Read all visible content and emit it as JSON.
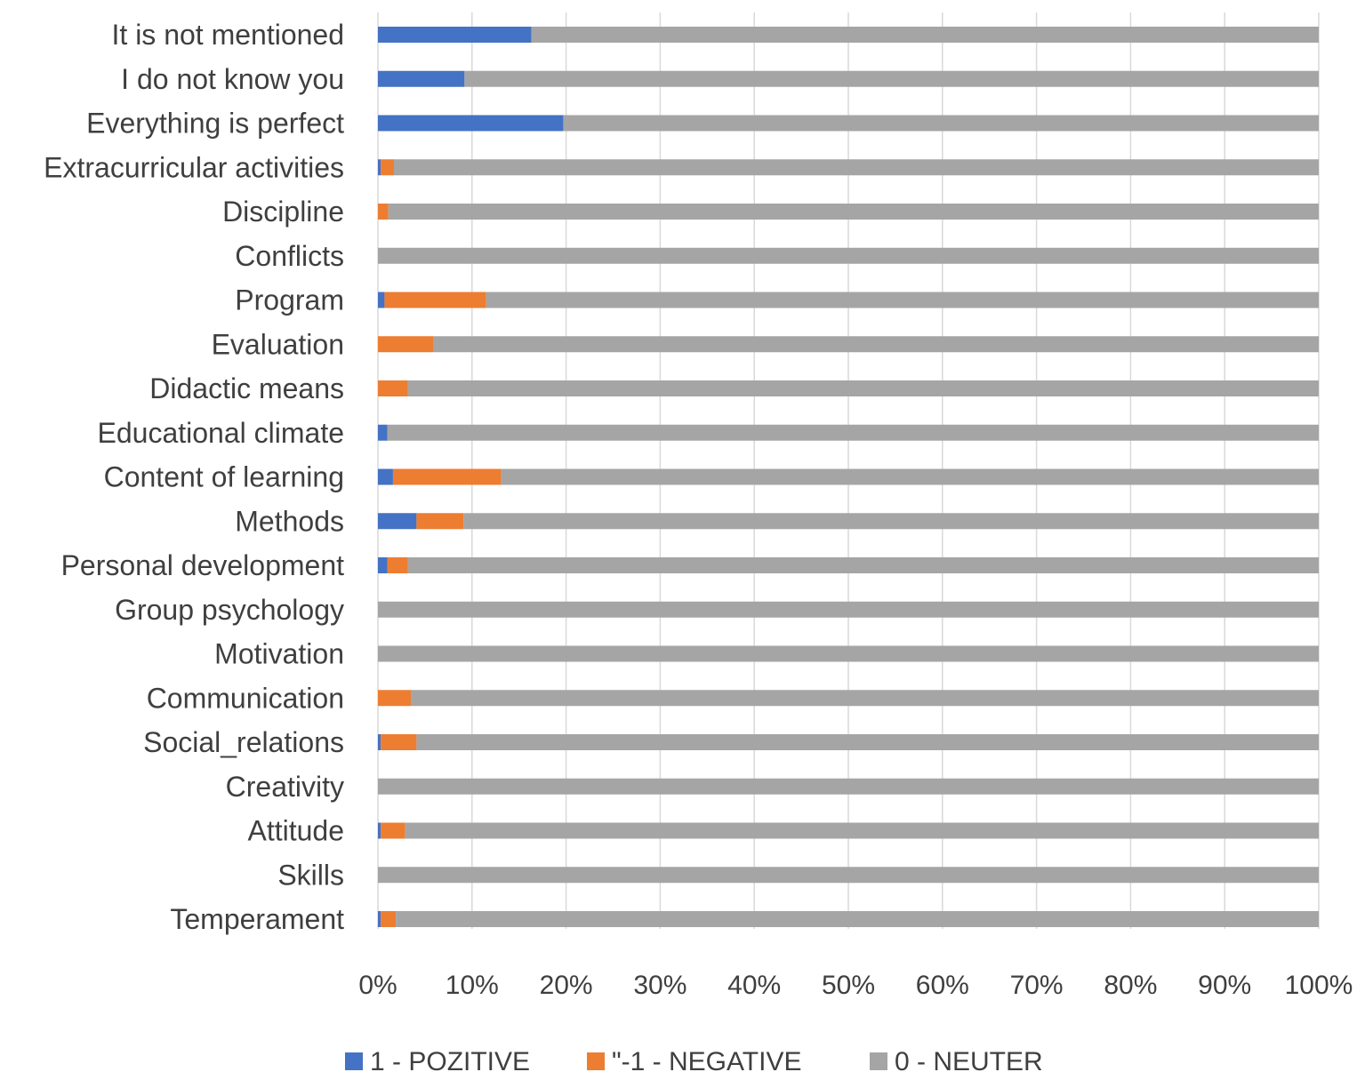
{
  "chart_data": {
    "type": "bar",
    "orientation": "horizontal",
    "stacked": "percent",
    "categories": [
      "It is not mentioned",
      "I do not know you",
      "Everything is perfect",
      "Extracurricular activities",
      "Discipline",
      "Conflicts",
      "Program",
      "Evaluation",
      "Didactic means",
      "Educational climate",
      "Content of learning",
      "Methods",
      "Personal development",
      "Group psychology",
      "Motivation",
      "Communication",
      "Social_relations",
      "Creativity",
      "Attitude",
      "Skills",
      "Temperament"
    ],
    "series": [
      {
        "name": "1 - POZITIVE",
        "color": "#4472c4",
        "values": [
          16.3,
          9.2,
          19.7,
          0.3,
          0,
          0,
          0.7,
          0,
          0,
          1.0,
          1.6,
          4.1,
          1.0,
          0,
          0,
          0,
          0.3,
          0,
          0.3,
          0,
          0.3
        ]
      },
      {
        "name": "\"-1 - NEGATIVE",
        "color": "#ed7d31",
        "values": [
          0,
          0,
          0,
          1.4,
          1.1,
          0,
          10.8,
          5.9,
          3.2,
          0,
          11.5,
          5.0,
          2.2,
          0,
          0,
          3.5,
          3.8,
          0,
          2.6,
          0,
          1.6
        ]
      },
      {
        "name": "0 - NEUTER",
        "color": "#a5a5a5",
        "values": [
          83.7,
          90.8,
          80.3,
          98.3,
          98.9,
          100,
          88.5,
          94.1,
          96.8,
          99.0,
          86.9,
          90.9,
          96.8,
          100,
          100,
          96.5,
          95.9,
          100,
          97.1,
          100,
          98.1
        ]
      }
    ],
    "xlim": [
      0,
      100
    ],
    "x_ticks": [
      "0%",
      "10%",
      "20%",
      "30%",
      "40%",
      "50%",
      "60%",
      "70%",
      "80%",
      "90%",
      "100%"
    ],
    "grid": "vertical",
    "legend_position": "bottom"
  }
}
